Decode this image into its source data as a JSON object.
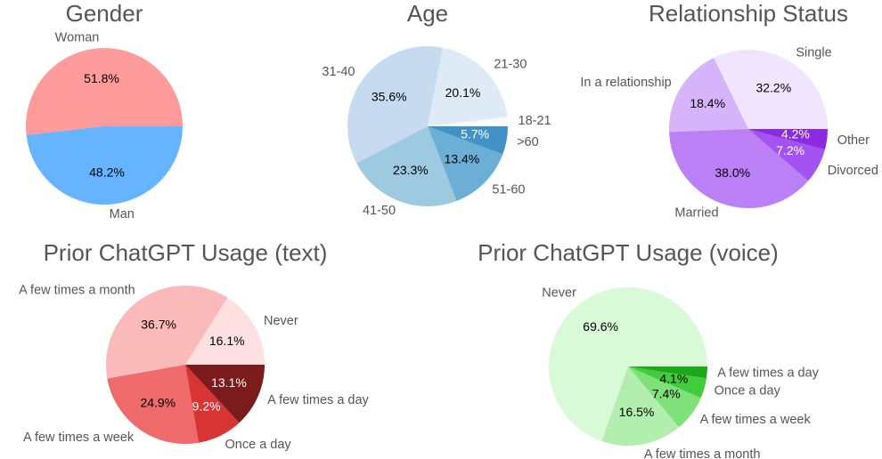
{
  "chart_data": [
    {
      "type": "pie",
      "title": "Gender",
      "categories": [
        "Woman",
        "Man"
      ],
      "values": [
        51.8,
        48.2
      ],
      "value_labels": [
        "51.8%",
        "48.2%"
      ],
      "colors": [
        "#ff9b9b",
        "#66b3ff"
      ]
    },
    {
      "type": "pie",
      "title": "Age",
      "categories": [
        "18-21",
        "21-30",
        "31-40",
        "41-50",
        "51-60",
        ">60"
      ],
      "values": [
        1.9,
        20.1,
        35.6,
        23.3,
        13.4,
        5.7
      ],
      "value_labels": [
        null,
        "20.1%",
        "35.6%",
        "23.3%",
        "13.4%",
        "5.7%"
      ],
      "colors": [
        "#f7fbff",
        "#deebf7",
        "#c6dbef",
        "#9ecae1",
        "#6baed6",
        "#4292c6"
      ]
    },
    {
      "type": "pie",
      "title": "Relationship Status",
      "categories": [
        "Single",
        "In a relationship",
        "Married",
        "Divorced",
        "Other"
      ],
      "values": [
        32.2,
        18.4,
        38.0,
        7.2,
        4.2
      ],
      "value_labels": [
        "32.2%",
        "18.4%",
        "38.0%",
        "7.2%",
        "4.2%"
      ],
      "colors": [
        "#f0e4fe",
        "#d7b3f9",
        "#bb80f6",
        "#a452f1",
        "#8a2be2"
      ]
    },
    {
      "type": "pie",
      "title": "Prior ChatGPT Usage (text)",
      "categories": [
        "Never",
        "A few times a month",
        "A few times a week",
        "Once a day",
        "A few times a day"
      ],
      "values": [
        16.1,
        36.7,
        24.9,
        9.2,
        13.1
      ],
      "value_labels": [
        "16.1%",
        "36.7%",
        "24.9%",
        "9.2%",
        "13.1%"
      ],
      "colors": [
        "#fee0e0",
        "#fbbaba",
        "#ef6b6b",
        "#d93434",
        "#7b1b1b"
      ]
    },
    {
      "type": "pie",
      "title": "Prior ChatGPT Usage (voice)",
      "categories": [
        "Never",
        "A few times a month",
        "A few times a week",
        "Once a day",
        "A few times a day"
      ],
      "values": [
        69.6,
        16.5,
        7.4,
        4.1,
        2.4
      ],
      "value_labels": [
        "69.6%",
        "16.5%",
        "7.4%",
        "4.1%",
        null
      ],
      "colors": [
        "#d9fad6",
        "#b2eeae",
        "#7fe17a",
        "#42cb3d",
        "#1fa71c"
      ]
    }
  ]
}
